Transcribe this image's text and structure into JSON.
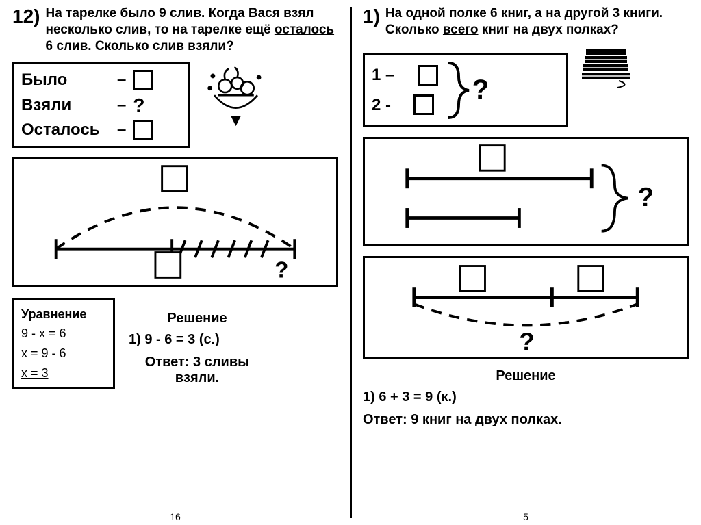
{
  "left": {
    "number": "12)",
    "problem_html": "На тарелке <span class='u'>было</span> 9 слив. Когда Вася <span class='u'>взял</span> несколько слив, то на тарелке ещё <span class='u'>осталось</span> 6 слив. Сколько слив взяли?",
    "table": {
      "r1_label": "Было",
      "r1_dash": "–",
      "r2_label": "Взяли",
      "r2_dash": "–",
      "r2_val": "?",
      "r3_label": "Осталось",
      "r3_dash": "–"
    },
    "diagram_qmark": "?",
    "equation": {
      "title": "Уравнение",
      "l1": "9 - x = 6",
      "l2": "x = 9 - 6",
      "l3_html": "<span class='u'>x = 3</span>"
    },
    "solution": {
      "title": "Решение",
      "step": "1) 9 - 6 = 3 (с.)",
      "answer": "Ответ: 3 сливы взяли."
    },
    "page_num": "16"
  },
  "right": {
    "number": "1)",
    "problem_html": "На <span class='u'>одной</span> полке 6 книг, а на <span class='u'>другой</span> 3 книги. Сколько <span class='u'>всего</span> книг на двух полках?",
    "short_record": {
      "r1": "1 –",
      "r2": "2 -",
      "qmark": "?"
    },
    "diagram1_qmark": "?",
    "diagram2_qmark": "?",
    "solution": {
      "title": "Решение",
      "step": "1) 6 + 3 = 9 (к.)",
      "answer": "Ответ: 9 книг на двух полках."
    },
    "page_num": "5"
  },
  "colors": {
    "stroke": "#000000",
    "bg": "#ffffff"
  }
}
